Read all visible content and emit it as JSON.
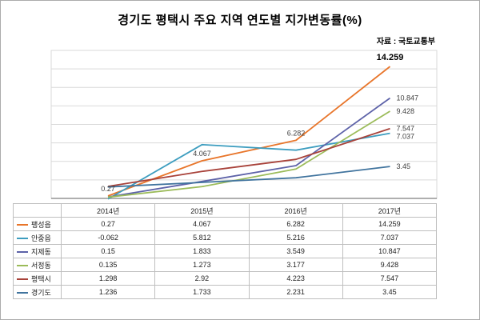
{
  "title": "경기도 평택시 주요 지역 연도별 지가변동률(%)",
  "source": "자료 : 국토교통부",
  "chart_data": {
    "type": "line",
    "title": "경기도 평택시 주요 지역 연도별 지가변동률(%)",
    "source": "자료 : 국토교통부",
    "categories": [
      "2014년",
      "2015년",
      "2016년",
      "2017년"
    ],
    "series": [
      {
        "name": "팽성읍",
        "color": "#E8752A",
        "values": [
          0.27,
          4.067,
          6.282,
          14.259
        ],
        "labels": [
          "0.27",
          "4.067",
          "6.282",
          "14.259"
        ],
        "label_mode": "all"
      },
      {
        "name": "안중읍",
        "color": "#3D9DBF",
        "values": [
          -0.062,
          5.812,
          5.216,
          7.037
        ],
        "labels": [
          "-0.062",
          "5.812",
          "5.216",
          "7.037"
        ],
        "label_mode": "last"
      },
      {
        "name": "지제동",
        "color": "#5D62A8",
        "values": [
          0.15,
          1.833,
          3.549,
          10.847
        ],
        "labels": [
          "0.15",
          "1.833",
          "3.549",
          "10.847"
        ],
        "label_mode": "last"
      },
      {
        "name": "서정동",
        "color": "#9BBB59",
        "values": [
          0.135,
          1.273,
          3.177,
          9.428
        ],
        "labels": [
          "0.135",
          "1.273",
          "3.177",
          "9.428"
        ],
        "label_mode": "last"
      },
      {
        "name": "평택시",
        "color": "#A8423A",
        "values": [
          1.298,
          2.92,
          4.223,
          7.547
        ],
        "labels": [
          "1.298",
          "2.92",
          "4.223",
          "7.547"
        ],
        "label_mode": "last"
      },
      {
        "name": "경기도",
        "color": "#41749E",
        "values": [
          1.236,
          1.733,
          2.231,
          3.45
        ],
        "labels": [
          "1.236",
          "1.733",
          "2.231",
          "3.45"
        ],
        "label_mode": "last"
      }
    ],
    "ylim": [
      0,
      16
    ],
    "grid_step": 2,
    "grid": true,
    "legend_position": "table-left",
    "xlabel": "",
    "ylabel": ""
  }
}
